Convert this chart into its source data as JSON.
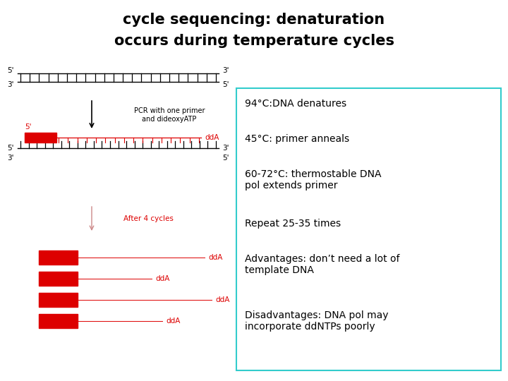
{
  "title_line1": "cycle sequencing: denaturation",
  "title_line2": "occurs during temperature cycles",
  "title_fontsize": 15,
  "title_font": "sans-serif",
  "background_color": "#ffffff",
  "box_color": "#33cccc",
  "text_color": "#000000",
  "red_color": "#dd0000",
  "info_lines": [
    "94°C:DNA denatures",
    "45°C: primer anneals",
    "60-72°C: thermostable DNA\npol extends primer",
    "Repeat 25-35 times",
    "Advantages: don’t need a lot of\ntemplate DNA",
    "Disadvantages: DNA pol may\nincorporate ddNTPs poorly"
  ],
  "info_fontsize": 10,
  "info_font": "sans-serif",
  "label_fontsize": 7.5
}
